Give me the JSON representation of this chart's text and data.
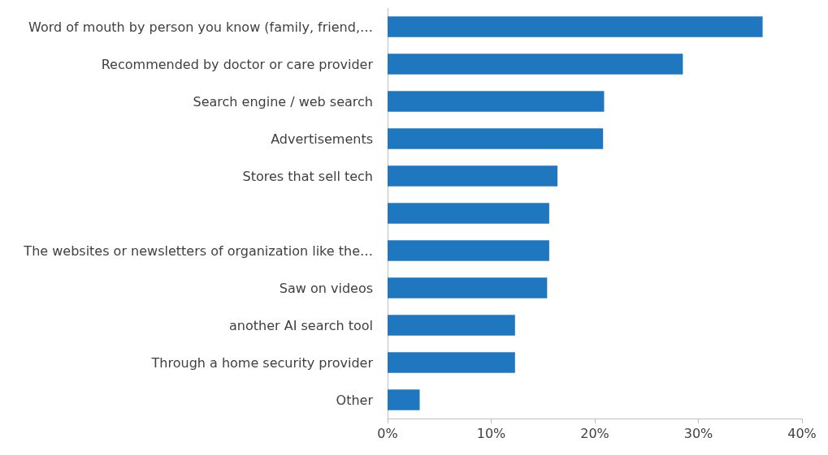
{
  "chart_data": {
    "type": "bar",
    "orientation": "horizontal",
    "categories": [
      "Word of mouth by person you know (family, friend,…",
      "Recommended by doctor or care provider",
      "Search engine / web search",
      "Advertisements",
      "Stores that sell tech",
      null,
      "The websites or newsletters of organization like the…",
      "Saw on videos",
      "another AI search tool",
      "Through a home security provider",
      "Other"
    ],
    "values": [
      36.2,
      28.5,
      20.9,
      20.8,
      16.4,
      15.6,
      15.6,
      15.4,
      12.3,
      12.3,
      3.1
    ],
    "color": "#1f77c0",
    "xlim": [
      0,
      40
    ],
    "xticks": [
      {
        "value": 0,
        "label": "0%"
      },
      {
        "value": 10,
        "label": "10%"
      },
      {
        "value": 20,
        "label": "20%"
      },
      {
        "value": 30,
        "label": "30%"
      },
      {
        "value": 40,
        "label": "40%"
      }
    ],
    "grid": false
  }
}
